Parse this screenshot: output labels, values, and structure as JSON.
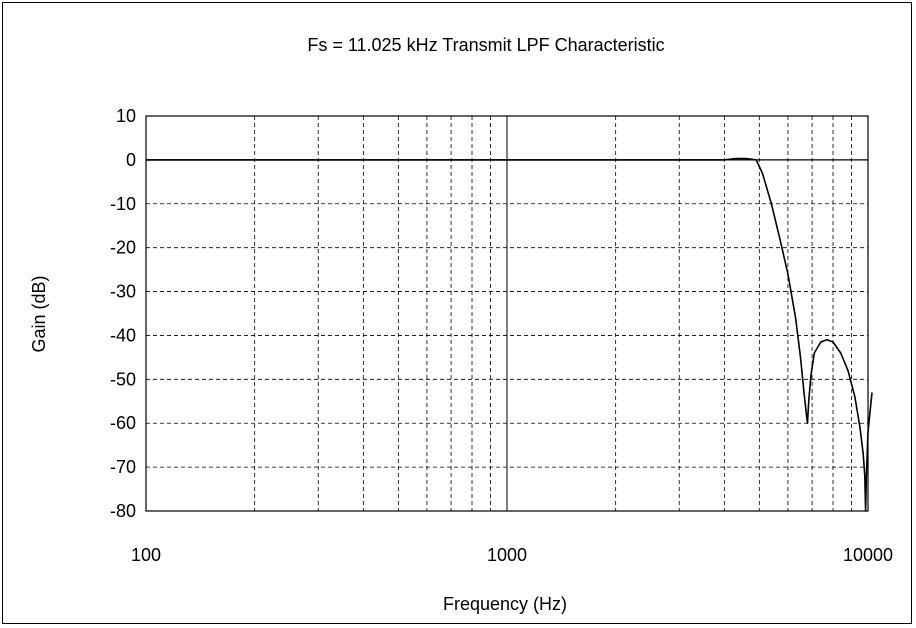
{
  "chart_data": {
    "type": "line",
    "title": "Fs = 11.025 kHz Transmit LPF Characteristic",
    "xlabel": "Frequency (Hz)",
    "ylabel": "Gain (dB)",
    "xscale": "log",
    "xlim": [
      100,
      10000
    ],
    "ylim": [
      -80,
      10
    ],
    "x_ticks": [
      100,
      1000,
      10000
    ],
    "x_tick_labels": [
      "100",
      "1000",
      "10000"
    ],
    "y_ticks": [
      10,
      0,
      -10,
      -20,
      -30,
      -40,
      -50,
      -60,
      -70,
      -80
    ],
    "y_tick_labels": [
      "10",
      "0",
      "-10",
      "-20",
      "-30",
      "-40",
      "-50",
      "-60",
      "-70",
      "-80"
    ],
    "grid": true,
    "legend": "none",
    "series": [
      {
        "color": "#000000",
        "x": [
          100,
          1000,
          4000,
          4300,
          4600,
          4900,
          5100,
          5400,
          5700,
          6000,
          6300,
          6500,
          6650,
          6750,
          6800,
          6850,
          6950,
          7100,
          7400,
          7700,
          8000,
          8400,
          8800,
          9200,
          9500,
          9700,
          9800,
          9850,
          9900,
          10000,
          10300
        ],
        "y": [
          0,
          0,
          0,
          0.3,
          0.3,
          0,
          -3,
          -10,
          -18,
          -26,
          -36,
          -45,
          -53,
          -58,
          -60,
          -55,
          -49,
          -44,
          -41.5,
          -41,
          -41.5,
          -44,
          -48,
          -54,
          -61,
          -67,
          -72,
          -80,
          -72,
          -62,
          -53
        ]
      }
    ]
  }
}
